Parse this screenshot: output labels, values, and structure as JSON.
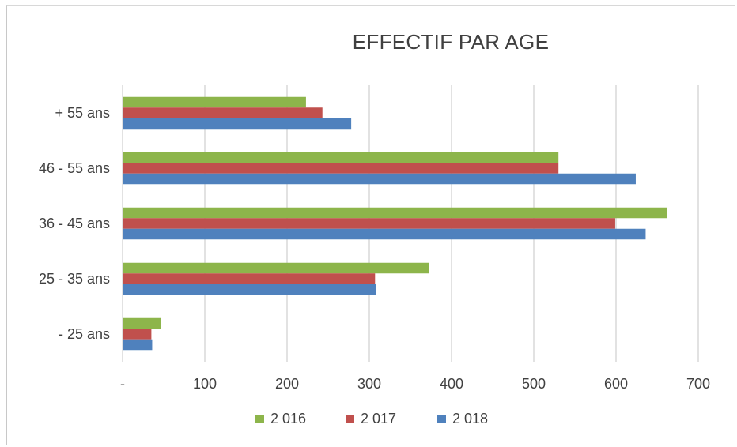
{
  "chart_data": {
    "type": "bar",
    "orientation": "horizontal",
    "title": "EFFECTIF PAR AGE",
    "categories": [
      "+ 55 ans",
      "46 - 55 ans",
      "36 - 45 ans",
      "25 - 35 ans",
      "- 25 ans"
    ],
    "series": [
      {
        "name": "2 016",
        "color": "#8db54b",
        "values": [
          223,
          530,
          662,
          373,
          47
        ]
      },
      {
        "name": "2 017",
        "color": "#c0504d",
        "values": [
          243,
          530,
          599,
          307,
          35
        ]
      },
      {
        "name": "2 018",
        "color": "#4f81bd",
        "values": [
          278,
          624,
          636,
          308,
          36
        ]
      }
    ],
    "xlim": [
      0,
      700
    ],
    "x_ticks": [
      "-",
      "100",
      "200",
      "300",
      "400",
      "500",
      "600",
      "700"
    ],
    "grid": "vertical",
    "legend": "bottom"
  }
}
